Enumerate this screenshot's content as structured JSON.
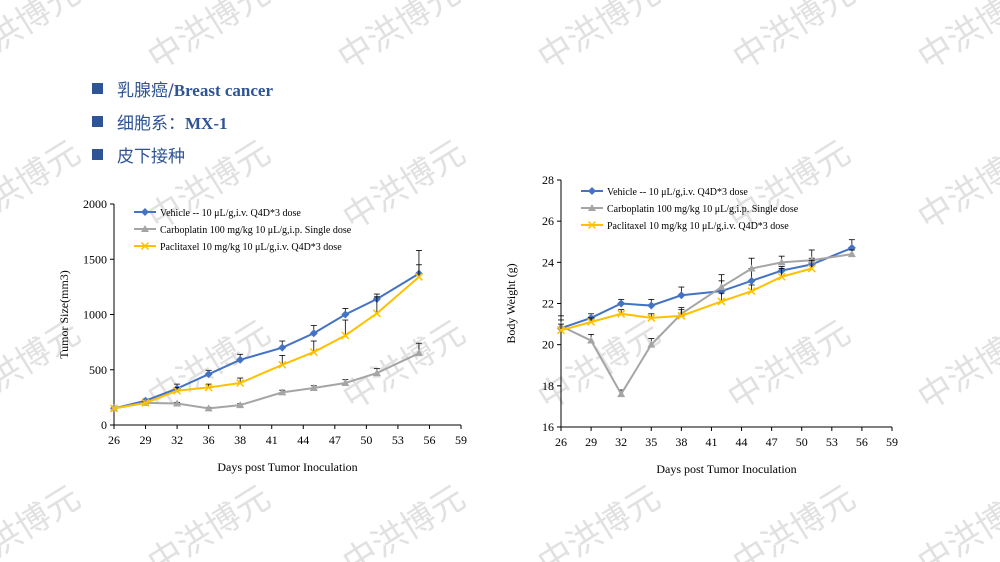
{
  "watermark": {
    "text": "中洪博元",
    "color": "#c8c8c8"
  },
  "bullets": [
    {
      "prefix": "乳腺癌/",
      "bold": "Breast cancer"
    },
    {
      "prefix": "细胞系：",
      "bold": "MX-1"
    },
    {
      "prefix": "皮下接种",
      "bold": ""
    }
  ],
  "chart_data": [
    {
      "type": "line",
      "xlabel": "Days post Tumor Inoculation",
      "ylabel": "Tumor Size(mm3)",
      "xlim": [
        26,
        59
      ],
      "ylim": [
        0,
        2000
      ],
      "xticks": [
        26,
        29,
        32,
        36,
        38,
        41,
        44,
        47,
        50,
        53,
        56,
        59
      ],
      "yticks": [
        0,
        500,
        1000,
        1500,
        2000
      ],
      "legend_position": "top-left",
      "series": [
        {
          "name": "Vehicle -- 10 μL/g,i.v. Q4D*3 dose",
          "color": "#4472c4",
          "marker": "diamond",
          "x": [
            26,
            29,
            32,
            35,
            38,
            42,
            45,
            48,
            51,
            55
          ],
          "y": [
            150,
            220,
            330,
            460,
            590,
            700,
            830,
            1000,
            1140,
            1370
          ],
          "err": [
            0,
            15,
            40,
            35,
            50,
            60,
            70,
            55,
            45,
            210
          ]
        },
        {
          "name": "Carboplatin 100 mg/kg 10 μL/g,i.p. Single dose",
          "color": "#a5a5a5",
          "marker": "triangle",
          "x": [
            26,
            29,
            32,
            35,
            38,
            42,
            45,
            48,
            51,
            55
          ],
          "y": [
            150,
            200,
            195,
            150,
            180,
            295,
            335,
            380,
            470,
            650
          ],
          "err": [
            0,
            10,
            10,
            10,
            12,
            20,
            20,
            30,
            40,
            90
          ]
        },
        {
          "name": "Paclitaxel 10 mg/kg 10 μL/g,i.v. Q4D*3 dose",
          "color": "#ffc000",
          "marker": "x",
          "x": [
            26,
            29,
            32,
            35,
            38,
            42,
            45,
            48,
            51,
            55
          ],
          "y": [
            150,
            200,
            310,
            340,
            380,
            545,
            660,
            810,
            1010,
            1340
          ],
          "err": [
            0,
            10,
            30,
            30,
            45,
            85,
            100,
            140,
            150,
            110
          ]
        }
      ]
    },
    {
      "type": "line",
      "xlabel": "Days post Tumor Inoculation",
      "ylabel": "Body Weight (g)",
      "xlim": [
        26,
        59
      ],
      "ylim": [
        16,
        28
      ],
      "xticks": [
        26,
        29,
        32,
        35,
        38,
        41,
        44,
        47,
        50,
        53,
        56,
        59
      ],
      "yticks": [
        16,
        18,
        20,
        22,
        24,
        26,
        28
      ],
      "legend_position": "top-left",
      "series": [
        {
          "name": "Vehicle -- 10 μL/g,i.v. Q4D*3 dose",
          "color": "#4472c4",
          "marker": "diamond",
          "x": [
            26,
            29,
            32,
            35,
            38,
            42,
            45,
            48,
            51,
            55
          ],
          "y": [
            20.8,
            21.3,
            22.0,
            21.9,
            22.4,
            22.6,
            23.1,
            23.6,
            23.9,
            24.7
          ],
          "err": [
            0.6,
            0.2,
            0.2,
            0.3,
            0.4,
            0.5,
            0.6,
            0.2,
            0.3,
            0.4
          ]
        },
        {
          "name": "Carboplatin 100 mg/kg 10 μL/g,i.p. Single dose",
          "color": "#a5a5a5",
          "marker": "triangle",
          "x": [
            26,
            29,
            32,
            35,
            38,
            42,
            45,
            48,
            51,
            55
          ],
          "y": [
            20.9,
            20.2,
            17.6,
            20.0,
            21.5,
            22.8,
            23.7,
            24.0,
            24.1,
            24.4
          ],
          "err": [
            0.3,
            0.3,
            0.2,
            0.3,
            0.3,
            0.6,
            0.5,
            0.3,
            0.5,
            0.2
          ]
        },
        {
          "name": "Paclitaxel 10 mg/kg 10 μL/g,i.v. Q4D*3 dose",
          "color": "#ffc000",
          "marker": "x",
          "x": [
            26,
            29,
            32,
            35,
            38,
            42,
            45,
            48,
            51
          ],
          "y": [
            20.7,
            21.1,
            21.5,
            21.3,
            21.4,
            22.1,
            22.6,
            23.3,
            23.7
          ],
          "err": [
            0.3,
            0.2,
            0.2,
            0.2,
            0.3,
            0.4,
            0.3,
            0.4,
            0.4
          ]
        }
      ]
    }
  ]
}
